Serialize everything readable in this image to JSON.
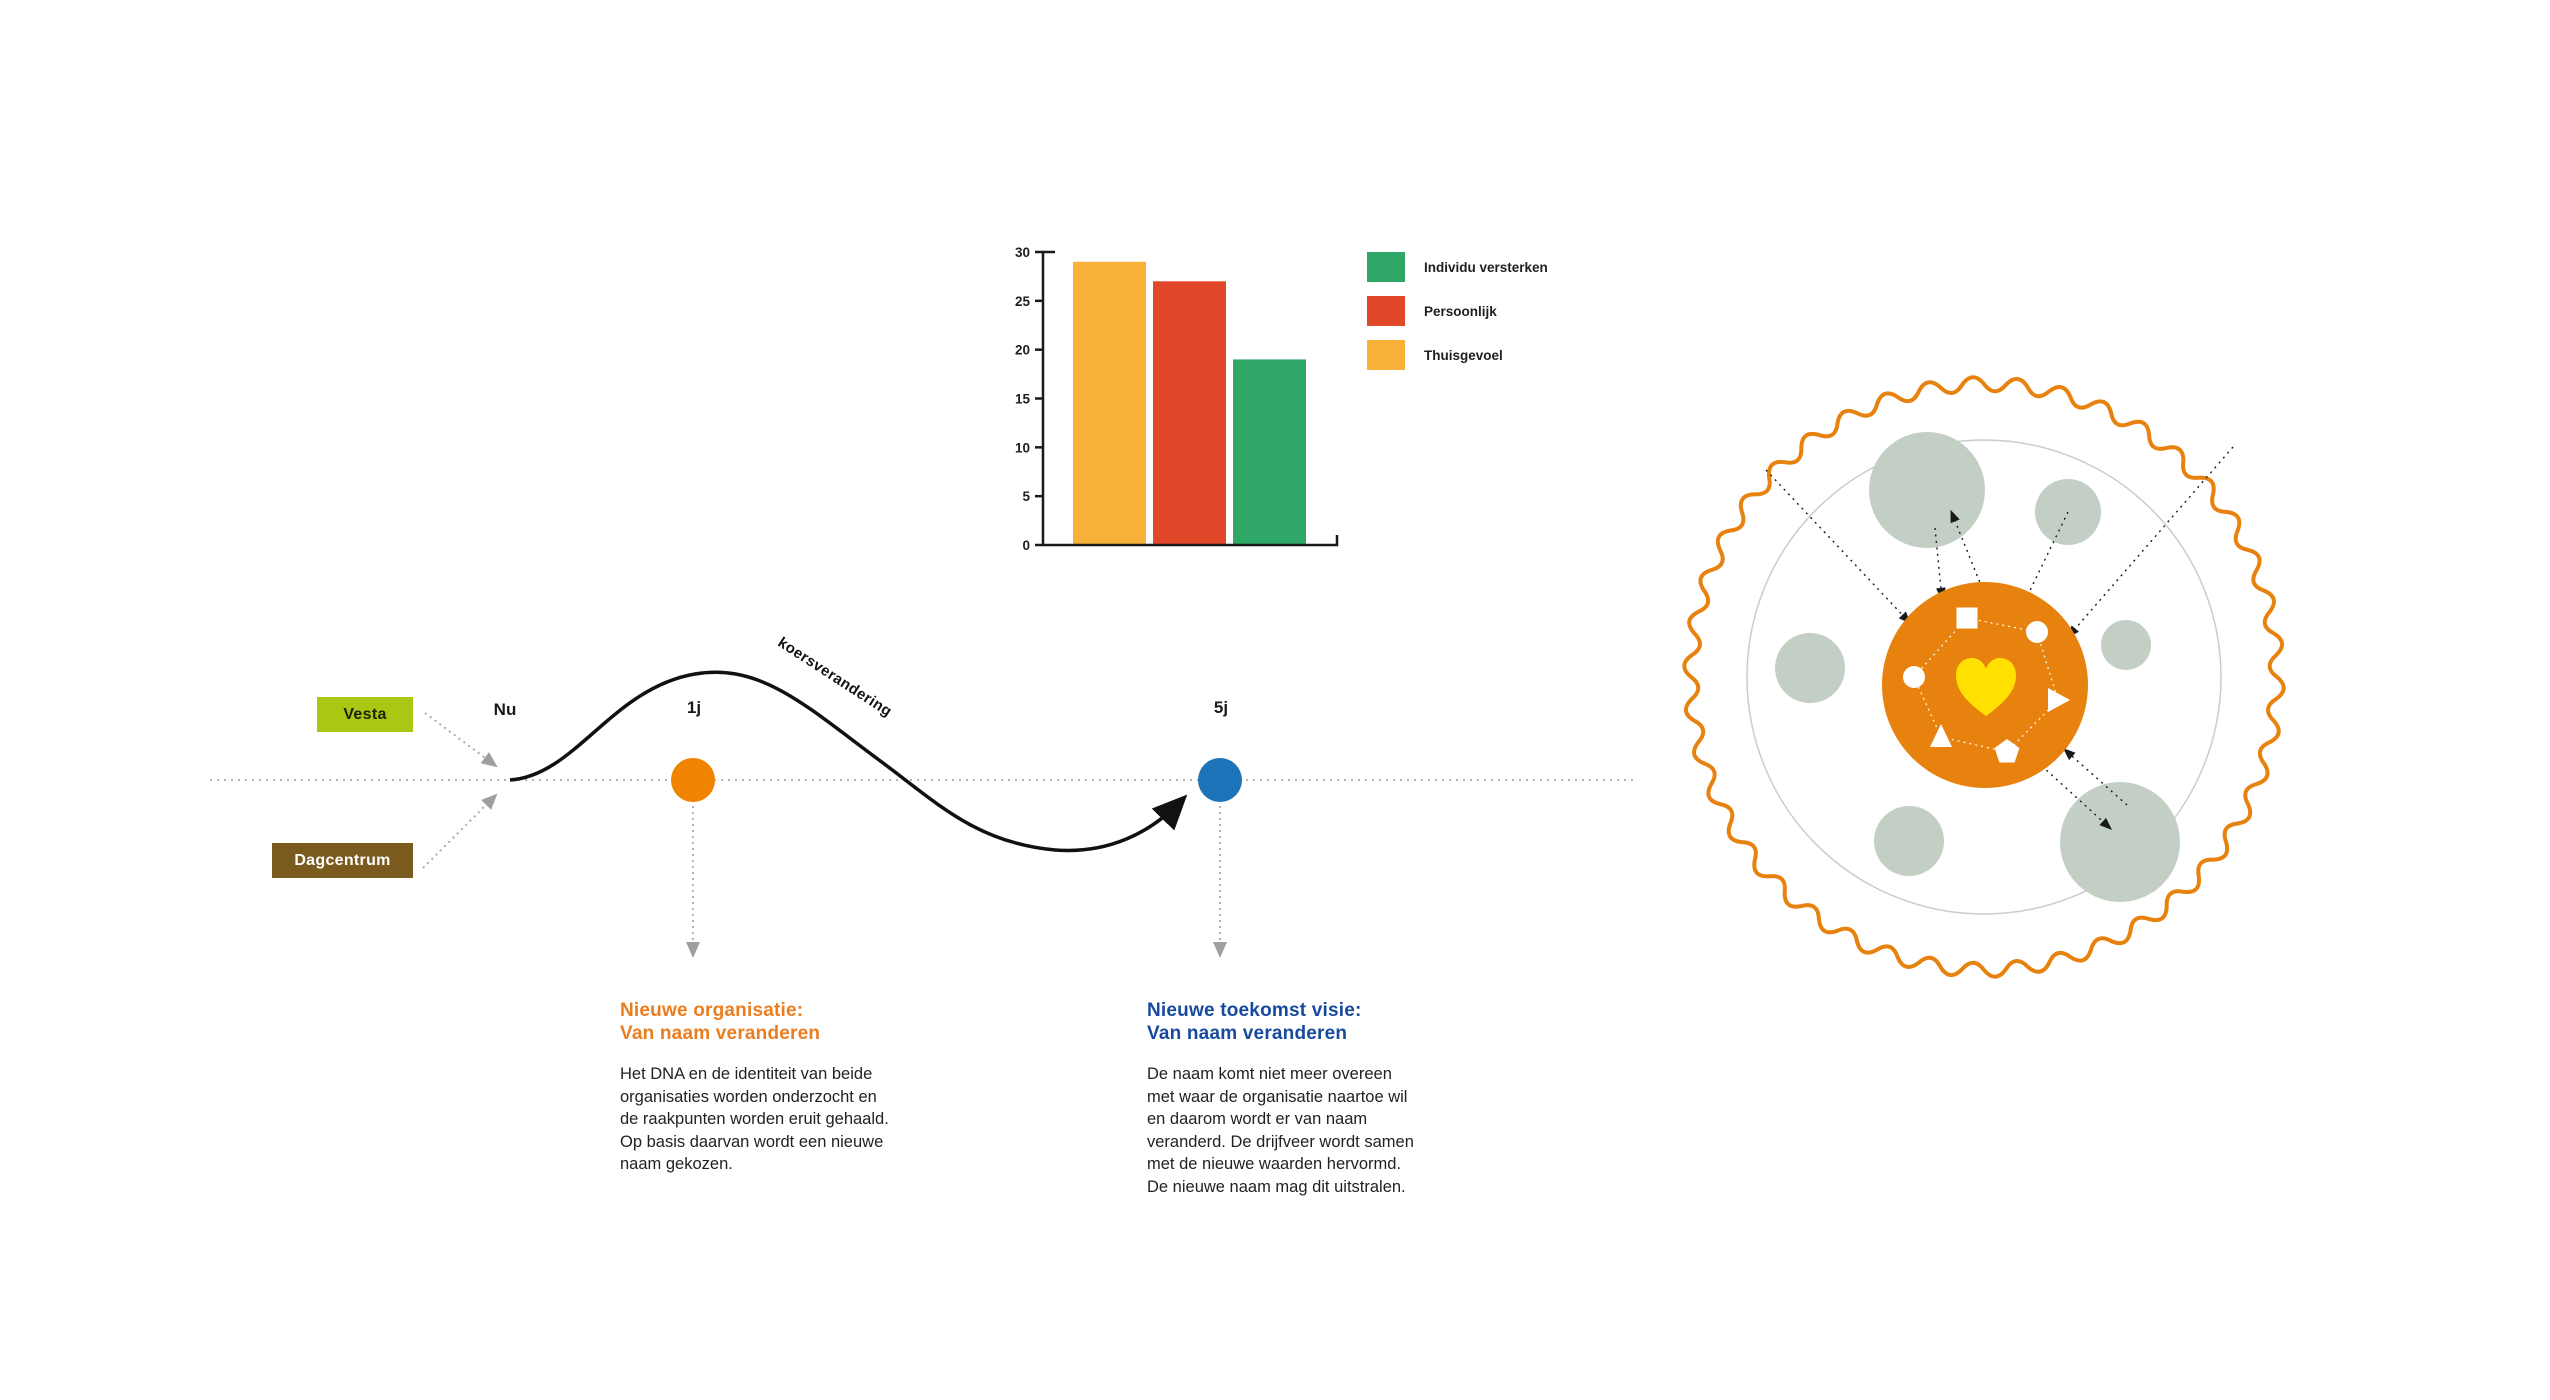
{
  "chart_data": {
    "type": "bar",
    "title": "",
    "xlabel": "",
    "ylabel": "",
    "categories": [
      "Thuisgevoel",
      "Persoonlijk",
      "Individu versterken"
    ],
    "values": [
      29,
      27,
      19
    ],
    "bar_colors": [
      "#f8b13b",
      "#e1482a",
      "#2ea767"
    ],
    "ylim": [
      0,
      30
    ],
    "yticks": [
      "0",
      "5",
      "10",
      "15",
      "20",
      "25",
      "30"
    ],
    "grid": false,
    "legend_position": "right",
    "legend": [
      {
        "label": "Individu versterken",
        "color": "#2ea767"
      },
      {
        "label": "Persoonlijk",
        "color": "#e1482a"
      },
      {
        "label": "Thuisgevoel",
        "color": "#f8b13b"
      }
    ]
  },
  "timeline": {
    "origin_boxes": [
      {
        "label": "Vesta",
        "bg": "#a8c813",
        "fg": "#23230c"
      },
      {
        "label": "Dagcentrum",
        "bg": "#7b5a1f",
        "fg": "#ffffff"
      }
    ],
    "now_label": "Nu",
    "milestones": [
      {
        "label": "1j",
        "dot_color": "#f08300"
      },
      {
        "label": "5j",
        "dot_color": "#1d74b8"
      }
    ],
    "curve_label": "koersverandering"
  },
  "annotations": [
    {
      "heading_line1": "Nieuwe organisatie:",
      "heading_line2": "Van naam veranderen",
      "heading_color": "#ec7d1e",
      "body": "Het DNA en de identiteit van beide organisaties worden onderzocht en de raakpunten worden eruit gehaald. Op basis daarvan wordt een nieuwe naam gekozen."
    },
    {
      "heading_line1": "Nieuwe toekomst visie:",
      "heading_line2": "Van naam veranderen",
      "heading_color": "#164a9e",
      "body": "De naam komt niet meer overeen met waar de organisatie naartoe wil en daarom wordt er van naam veranderd. De drijfveer wordt samen met de nieuwe waarden hervormd. De nieuwe naam mag dit uitstralen."
    }
  ],
  "circle_diagram": {
    "wavy_ring_color": "#e8820e",
    "inner_ring_color": "#c8cdd2",
    "satellite_color": "#c3cfc5",
    "core_color": "#e8820e",
    "heart_color": "#ffe000",
    "icon_color": "#ffffff"
  }
}
